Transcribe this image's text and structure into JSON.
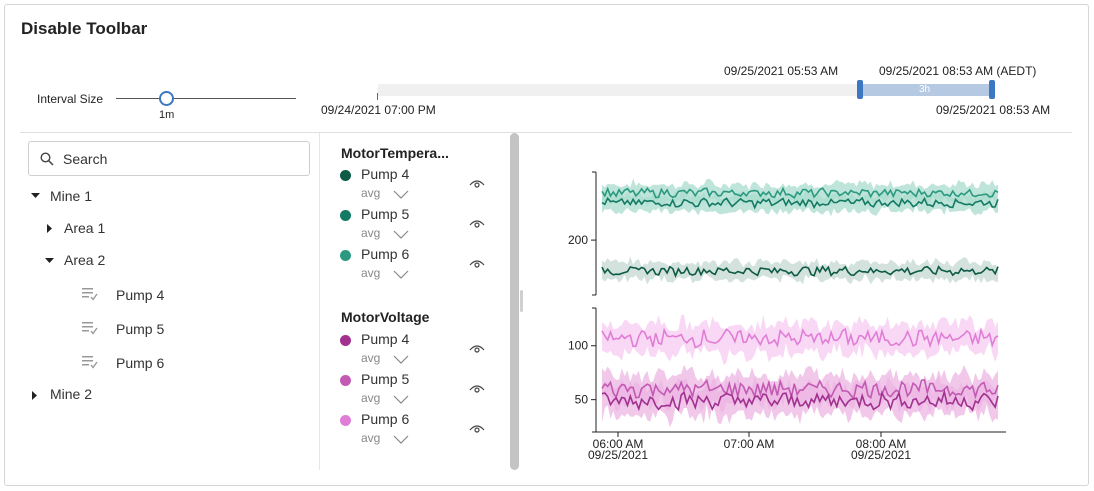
{
  "header": {
    "title": "Disable Toolbar"
  },
  "interval": {
    "label": "Interval Size",
    "value": "1m"
  },
  "timeline": {
    "start_label": "09/24/2021 07:00 PM",
    "end_label": "09/25/2021 08:53 AM",
    "selection_from": "09/25/2021 05:53 AM",
    "selection_to": "09/25/2021 08:53 AM (AEDT)",
    "selection_size": "3h",
    "track_color": "#f0f0f0",
    "selection_color": "#b6c9e3",
    "handle_color": "#3b78c1"
  },
  "search": {
    "placeholder": "Search"
  },
  "tree": {
    "mine1": "Mine 1",
    "area1": "Area 1",
    "area2": "Area 2",
    "pumps": [
      "Pump 4",
      "Pump 5",
      "Pump 6"
    ],
    "mine2": "Mine 2"
  },
  "legend": {
    "groups": [
      {
        "title": "MotorTempera...",
        "items": [
          {
            "name": "Pump 4",
            "agg": "avg",
            "color": "#0d5a45"
          },
          {
            "name": "Pump 5",
            "agg": "avg",
            "color": "#137a64"
          },
          {
            "name": "Pump 6",
            "agg": "avg",
            "color": "#2a9980"
          }
        ]
      },
      {
        "title": "MotorVoltage",
        "items": [
          {
            "name": "Pump 4",
            "agg": "avg",
            "color": "#a0318f"
          },
          {
            "name": "Pump 5",
            "agg": "avg",
            "color": "#c25ab3"
          },
          {
            "name": "Pump 6",
            "agg": "avg",
            "color": "#e07ed6"
          }
        ]
      }
    ]
  },
  "chart_data": {
    "type": "line",
    "x_ticks": [
      {
        "time": "06:00 AM",
        "date": "09/25/2021"
      },
      {
        "time": "07:00 AM",
        "date": ""
      },
      {
        "time": "08:00 AM",
        "date": "09/25/2021"
      }
    ],
    "panels": [
      {
        "name": "MotorTemperature",
        "yticks": [
          200
        ],
        "ylim": [
          150,
          262
        ],
        "series": [
          {
            "name": "Pump 6",
            "mean": 243,
            "amp": 3,
            "band": 8,
            "color": "#2a9980",
            "band_color": "#a9dccd"
          },
          {
            "name": "Pump 5",
            "mean": 234,
            "amp": 3,
            "band": 8,
            "color": "#137a64",
            "band_color": "#a9dccd"
          },
          {
            "name": "Pump 4",
            "mean": 172,
            "amp": 3,
            "band": 8,
            "color": "#0d5a45",
            "band_color": "#c4d8d1"
          }
        ]
      },
      {
        "name": "MotorVoltage",
        "yticks": [
          100,
          50
        ],
        "ylim": [
          20,
          135
        ],
        "series": [
          {
            "name": "Pump 6",
            "mean": 107,
            "amp": 6,
            "band": 14,
            "color": "#e07ed6",
            "band_color": "#f7cbf1"
          },
          {
            "name": "Pump 5",
            "mean": 60,
            "amp": 6,
            "band": 14,
            "color": "#c25ab3",
            "band_color": "#ecb4e3"
          },
          {
            "name": "Pump 4",
            "mean": 49,
            "amp": 6,
            "band": 14,
            "color": "#a0318f",
            "band_color": "#ecb4e3"
          }
        ]
      }
    ]
  }
}
